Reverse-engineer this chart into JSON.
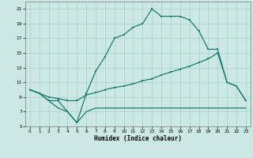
{
  "xlabel": "Humidex (Indice chaleur)",
  "xlim": [
    -0.5,
    23.5
  ],
  "ylim": [
    5,
    22
  ],
  "xticks": [
    0,
    1,
    2,
    3,
    4,
    5,
    6,
    7,
    8,
    9,
    10,
    11,
    12,
    13,
    14,
    15,
    16,
    17,
    18,
    19,
    20,
    21,
    22,
    23
  ],
  "yticks": [
    5,
    7,
    9,
    11,
    13,
    15,
    17,
    19,
    21
  ],
  "bg_color": "#cce8e4",
  "grid_color": "#a8d0cc",
  "line_color": "#1a7a6e",
  "line1_x": [
    0,
    1,
    2,
    3,
    4,
    5,
    6,
    7,
    8,
    9,
    10,
    11,
    12,
    13,
    14,
    15,
    16,
    17,
    18,
    19,
    20,
    21,
    22,
    23
  ],
  "line1_y": [
    10,
    9.5,
    8.5,
    8.5,
    7.0,
    5.5,
    9.5,
    12.5,
    14.5,
    17.0,
    17.5,
    18.5,
    19.0,
    21.0,
    20.0,
    20.0,
    20.0,
    19.5,
    18.0,
    15.5,
    15.5,
    11.0,
    10.5,
    8.5
  ],
  "line2_x": [
    0,
    1,
    2,
    3,
    4,
    5,
    6,
    7,
    8,
    9,
    10,
    11,
    12,
    13,
    14,
    15,
    16,
    17,
    18,
    19,
    20,
    21,
    22,
    23
  ],
  "line2_y": [
    10,
    9.5,
    9.0,
    8.8,
    8.5,
    8.5,
    9.3,
    9.6,
    10.0,
    10.3,
    10.5,
    10.8,
    11.2,
    11.5,
    12.0,
    12.4,
    12.8,
    13.2,
    13.7,
    14.2,
    15.0,
    11.0,
    10.5,
    8.5
  ],
  "line3_x": [
    0,
    1,
    2,
    3,
    4,
    5,
    6,
    7,
    8,
    9,
    10,
    11,
    12,
    13,
    14,
    15,
    16,
    17,
    18,
    19,
    20,
    21,
    22,
    23
  ],
  "line3_y": [
    10,
    9.5,
    8.5,
    7.5,
    7.0,
    5.5,
    7.0,
    7.5,
    7.5,
    7.5,
    7.5,
    7.5,
    7.5,
    7.5,
    7.5,
    7.5,
    7.5,
    7.5,
    7.5,
    7.5,
    7.5,
    7.5,
    7.5,
    7.5
  ]
}
